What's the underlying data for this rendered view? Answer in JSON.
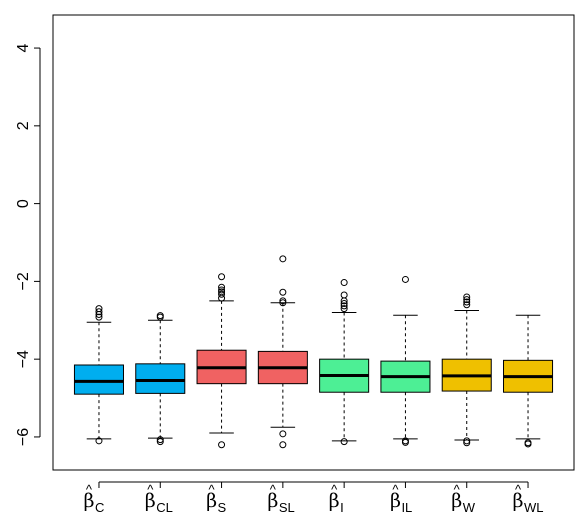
{
  "chart_data": {
    "type": "box",
    "title": "",
    "xlabel": "",
    "ylabel": "",
    "ylim": [
      -6.85,
      4.85
    ],
    "yticks": [
      4,
      2,
      0,
      -2,
      -4,
      -6
    ],
    "ytick_labels": [
      "4",
      "2",
      "0",
      "−2",
      "−4",
      "−6"
    ],
    "categories": [
      {
        "symbol": "β",
        "hat": "^",
        "subscript": "C"
      },
      {
        "symbol": "β",
        "hat": "^",
        "subscript": "CL"
      },
      {
        "symbol": "β",
        "hat": "^",
        "subscript": "S"
      },
      {
        "symbol": "β",
        "hat": "^",
        "subscript": "SL"
      },
      {
        "symbol": "β",
        "hat": "^",
        "subscript": "I"
      },
      {
        "symbol": "β",
        "hat": "^",
        "subscript": "IL"
      },
      {
        "symbol": "β",
        "hat": "^",
        "subscript": "W"
      },
      {
        "symbol": "β",
        "hat": "^",
        "subscript": "WL"
      }
    ],
    "boxes": [
      {
        "color": "#00aeef",
        "whisker_low": -6.05,
        "q1": -4.9,
        "median": -4.57,
        "q3": -4.15,
        "whisker_high": -3.05,
        "outliers": [
          -2.7,
          -2.78,
          -2.85,
          -2.92,
          -6.1
        ]
      },
      {
        "color": "#00aeef",
        "whisker_low": -6.03,
        "q1": -4.88,
        "median": -4.55,
        "q3": -4.12,
        "whisker_high": -3.0,
        "outliers": [
          -2.88,
          -2.92,
          -6.07,
          -6.12
        ]
      },
      {
        "color": "#f06262",
        "whisker_low": -5.9,
        "q1": -4.63,
        "median": -4.22,
        "q3": -3.77,
        "whisker_high": -2.5,
        "outliers": [
          -1.88,
          -2.15,
          -2.22,
          -2.27,
          -2.33,
          -2.43,
          -6.2
        ]
      },
      {
        "color": "#f06262",
        "whisker_low": -5.75,
        "q1": -4.63,
        "median": -4.22,
        "q3": -3.8,
        "whisker_high": -2.55,
        "outliers": [
          -1.42,
          -2.28,
          -2.5,
          -2.55,
          -5.92,
          -6.2
        ]
      },
      {
        "color": "#4def95",
        "whisker_low": -6.1,
        "q1": -4.85,
        "median": -4.42,
        "q3": -4.0,
        "whisker_high": -2.8,
        "outliers": [
          -2.03,
          -2.35,
          -2.5,
          -2.57,
          -2.63,
          -2.7,
          -6.12
        ]
      },
      {
        "color": "#4def95",
        "whisker_low": -6.05,
        "q1": -4.85,
        "median": -4.45,
        "q3": -4.05,
        "whisker_high": -2.87,
        "outliers": [
          -1.95,
          -6.1,
          -6.14
        ]
      },
      {
        "color": "#efc000",
        "whisker_low": -6.08,
        "q1": -4.82,
        "median": -4.43,
        "q3": -4.0,
        "whisker_high": -2.75,
        "outliers": [
          -2.4,
          -2.47,
          -2.53,
          -2.6,
          -6.1,
          -6.15
        ]
      },
      {
        "color": "#efc000",
        "whisker_low": -6.05,
        "q1": -4.85,
        "median": -4.45,
        "q3": -4.03,
        "whisker_high": -2.87,
        "outliers": [
          -6.15,
          -6.18
        ]
      }
    ],
    "grid": false,
    "legend": "none"
  }
}
